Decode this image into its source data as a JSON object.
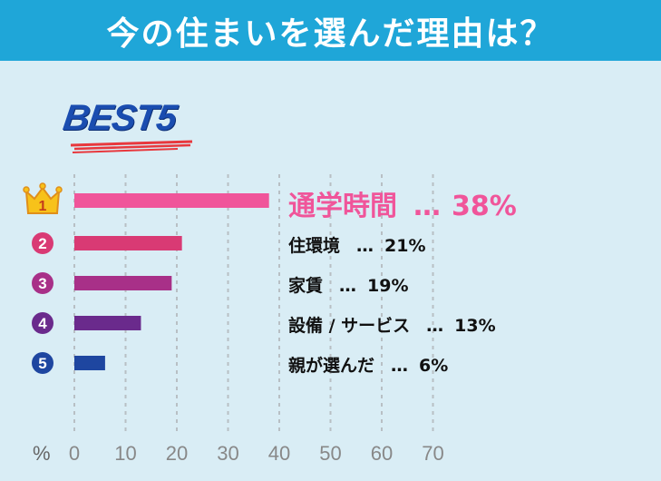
{
  "header": {
    "title": "今の住まいを選んだ理由は？"
  },
  "badge": {
    "text": "BEST5"
  },
  "axis": {
    "unit_symbol": "%"
  },
  "chart_data": {
    "type": "bar",
    "orientation": "horizontal",
    "categories": [
      "通学時間",
      "住環境",
      "家賃",
      "設備 / サービス",
      "親が選んだ"
    ],
    "values": [
      38,
      21,
      19,
      13,
      6
    ],
    "value_labels": [
      "38%",
      "21%",
      "19%",
      "13%",
      "6%"
    ],
    "ranks": [
      "1",
      "2",
      "3",
      "4",
      "5"
    ],
    "colors": [
      "#f0559a",
      "#d93a74",
      "#a83088",
      "#6a2a8c",
      "#1e46a0"
    ],
    "xlim": [
      0,
      70
    ],
    "xticks": [
      "0",
      "10",
      "20",
      "30",
      "40",
      "50",
      "60",
      "70"
    ],
    "grid": true,
    "title": "今の住まいを選んだ理由は？"
  },
  "separator": "…"
}
